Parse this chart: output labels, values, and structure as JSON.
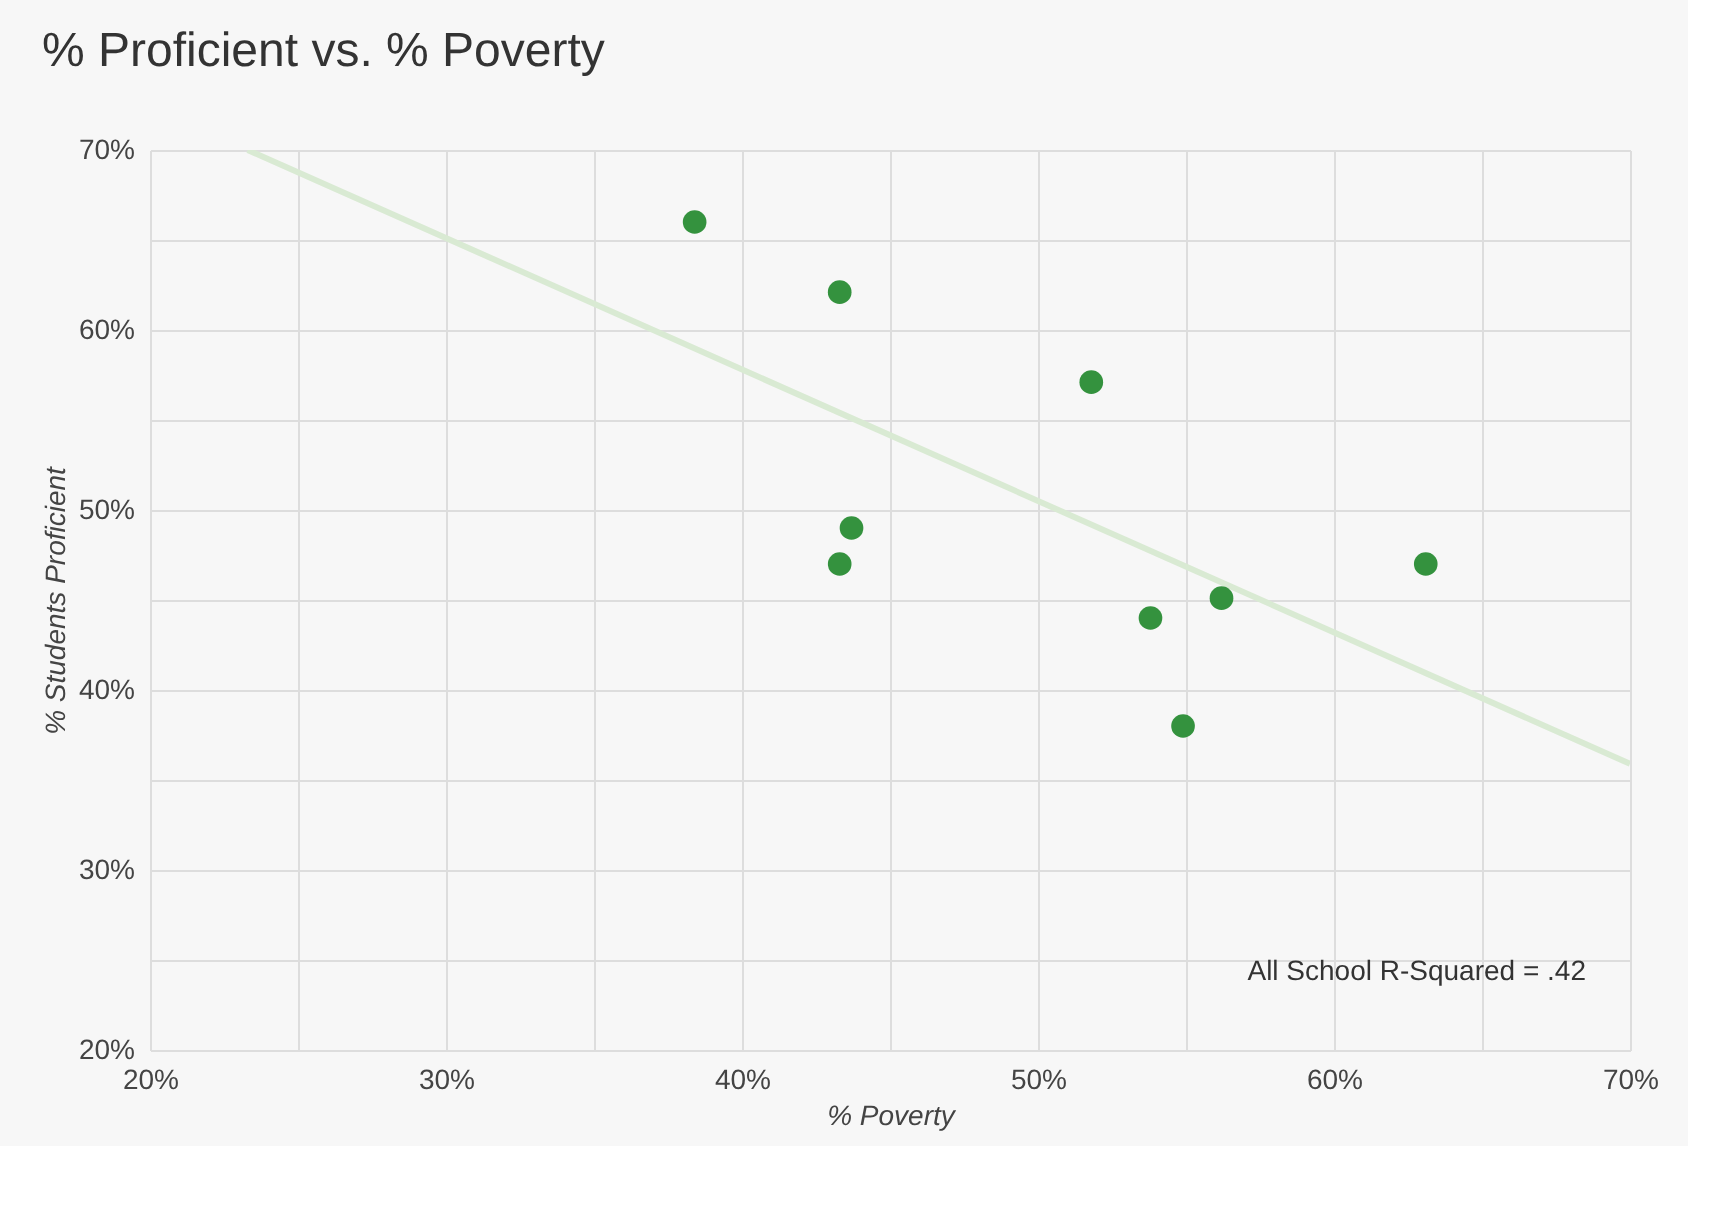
{
  "chart_data": {
    "type": "scatter",
    "title": "% Proficient vs. % Poverty",
    "xlabel": "% Poverty",
    "ylabel": "% Students Proficient",
    "x": [
      38.4,
      43.3,
      43.7,
      43.3,
      51.8,
      53.8,
      56.2,
      54.9,
      63.1
    ],
    "series": [
      {
        "color": "#34923e",
        "values": [
          66.0,
          62.1,
          49.0,
          47.0,
          57.1,
          44.0,
          45.1,
          38.0,
          47.0
        ]
      },
      {
        "type": "line",
        "marker": "none",
        "color": "#d9ead3",
        "x": [
          23.3,
          70
        ],
        "values": [
          70,
          35.9
        ]
      }
    ],
    "xlim": [
      20,
      70
    ],
    "ylim": [
      20,
      70
    ],
    "xticks": [
      {
        "value": 20,
        "label": "20%"
      },
      {
        "value": 25,
        "label": null
      },
      {
        "value": 30,
        "label": "30%"
      },
      {
        "value": 35,
        "label": null
      },
      {
        "value": 40,
        "label": "40%"
      },
      {
        "value": 45,
        "label": null
      },
      {
        "value": 50,
        "label": "50%"
      },
      {
        "value": 55,
        "label": null
      },
      {
        "value": 60,
        "label": "60%"
      },
      {
        "value": 65,
        "label": null
      },
      {
        "value": 70,
        "label": "70%"
      }
    ],
    "yticks": [
      {
        "value": 20,
        "label": "20%"
      },
      {
        "value": 25,
        "label": null
      },
      {
        "value": 30,
        "label": "30%"
      },
      {
        "value": 35,
        "label": null
      },
      {
        "value": 40,
        "label": "40%"
      },
      {
        "value": 45,
        "label": null
      },
      {
        "value": 50,
        "label": "50%"
      },
      {
        "value": 55,
        "label": null
      },
      {
        "value": 60,
        "label": "60%"
      },
      {
        "value": 65,
        "label": null
      },
      {
        "value": 70,
        "label": "70%"
      }
    ],
    "grid": true,
    "marker": "circle",
    "annotations": [
      "All School R-Squared = .42"
    ]
  }
}
